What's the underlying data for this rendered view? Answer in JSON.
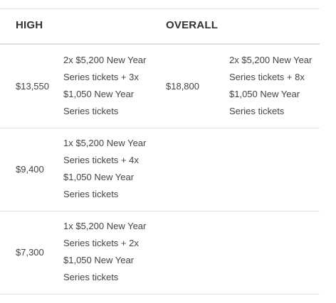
{
  "headers": {
    "high": "HIGH",
    "overall": "OVERALL"
  },
  "rows": [
    {
      "high_amount": "$13,550",
      "high_lines": [
        "2x $5,200 New Year",
        "Series tickets + 3x",
        "$1,050 New Year",
        "Series tickets"
      ],
      "overall_amount": "$18,800",
      "overall_lines": [
        "2x $5,200 New Year",
        "Series tickets + 8x",
        "$1,050 New Year",
        "Series tickets"
      ]
    },
    {
      "high_amount": "$9,400",
      "high_lines": [
        "1x $5,200 New Year",
        "Series tickets + 4x",
        "$1,050 New Year",
        "Series tickets"
      ]
    },
    {
      "high_amount": "$7,300",
      "high_lines": [
        "1x $5,200 New Year",
        "Series tickets + 2x",
        "$1,050 New Year",
        "Series tickets"
      ]
    }
  ]
}
